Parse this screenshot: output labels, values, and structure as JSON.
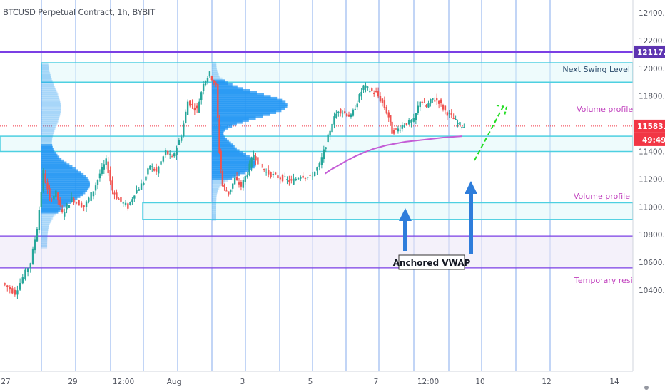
{
  "header": {
    "title": "BTCUSD Perpetual Contract, 1h, BYBIT"
  },
  "colors": {
    "up": "#26a69a",
    "down": "#ef5350",
    "grid_line": "#5b8fe6",
    "level_line": "#7b3fe4",
    "zone_line": "#4dd0e1",
    "vwap": "#c45dd6",
    "profile_bar": "#2196f3",
    "arrow": "#2e7ddb",
    "projection": "#22dd22",
    "label_magenta": "#c03fbd",
    "price_tag": "#f23645",
    "swing_tag": "#5e35b1"
  },
  "price_axis": {
    "ticks": [
      "12400.0",
      "12200.0",
      "12000.0",
      "11800.0",
      "11600.0",
      "11400.0",
      "11200.0",
      "11000.0",
      "10800.0",
      "10600.0",
      "10400.0"
    ],
    "last_price": "11583.0",
    "countdown": "49:49",
    "swing_level": "12117.5"
  },
  "time_axis": {
    "ticks": [
      "27",
      "29",
      "12:00",
      "Aug",
      "3",
      "5",
      "7",
      "12:00",
      "10",
      "12",
      "14"
    ]
  },
  "annotations": {
    "next_swing": "Next Swing Level",
    "vol_profile_1": "Volume profile le",
    "vol_profile_2": "Volume profile",
    "temp_resist": "Temporary resista",
    "anchored_vwap": "Anchored VWAP"
  },
  "chart_data": {
    "type": "candlestick",
    "title": "BTCUSD Perpetual Contract, 1h, BYBIT",
    "ylim": [
      10360,
      12560
    ],
    "horizontal_levels": [
      {
        "name": "Next Swing Level",
        "price": 12117.5
      },
      {
        "name": "Volume profile le",
        "price_range": [
          11900,
          12040
        ]
      },
      {
        "name": "Volume profile",
        "price_range": [
          11400,
          11510
        ]
      },
      {
        "name": "Temporary resista",
        "price_range": [
          10910,
          11030
        ]
      },
      {
        "price_range": [
          10560,
          10790
        ]
      }
    ],
    "anchored_vwap": [
      [
        0.512,
        11240
      ],
      [
        0.52,
        11265
      ],
      [
        0.53,
        11290
      ],
      [
        0.545,
        11330
      ],
      [
        0.56,
        11365
      ],
      [
        0.575,
        11395
      ],
      [
        0.59,
        11420
      ],
      [
        0.61,
        11445
      ],
      [
        0.64,
        11470
      ],
      [
        0.67,
        11485
      ],
      [
        0.7,
        11500
      ],
      [
        0.73,
        11510
      ]
    ],
    "ohlc_path": [
      [
        0.0,
        10450
      ],
      [
        0.02,
        10380
      ],
      [
        0.045,
        10600
      ],
      [
        0.055,
        10850
      ],
      [
        0.065,
        11250
      ],
      [
        0.075,
        11050
      ],
      [
        0.085,
        11100
      ],
      [
        0.095,
        10950
      ],
      [
        0.11,
        11060
      ],
      [
        0.13,
        11000
      ],
      [
        0.145,
        11120
      ],
      [
        0.155,
        11240
      ],
      [
        0.165,
        11330
      ],
      [
        0.175,
        11120
      ],
      [
        0.185,
        11050
      ],
      [
        0.2,
        11000
      ],
      [
        0.21,
        11100
      ],
      [
        0.225,
        11180
      ],
      [
        0.235,
        11300
      ],
      [
        0.245,
        11250
      ],
      [
        0.26,
        11400
      ],
      [
        0.27,
        11350
      ],
      [
        0.285,
        11520
      ],
      [
        0.295,
        11760
      ],
      [
        0.31,
        11700
      ],
      [
        0.32,
        11900
      ],
      [
        0.33,
        11960
      ],
      [
        0.34,
        11870
      ],
      [
        0.345,
        11400
      ],
      [
        0.35,
        11150
      ],
      [
        0.36,
        11100
      ],
      [
        0.37,
        11200
      ],
      [
        0.38,
        11150
      ],
      [
        0.39,
        11250
      ],
      [
        0.4,
        11380
      ],
      [
        0.41,
        11300
      ],
      [
        0.42,
        11250
      ],
      [
        0.435,
        11220
      ],
      [
        0.45,
        11200
      ],
      [
        0.46,
        11180
      ],
      [
        0.475,
        11230
      ],
      [
        0.49,
        11210
      ],
      [
        0.505,
        11300
      ],
      [
        0.515,
        11450
      ],
      [
        0.525,
        11610
      ],
      [
        0.535,
        11700
      ],
      [
        0.545,
        11680
      ],
      [
        0.555,
        11650
      ],
      [
        0.565,
        11760
      ],
      [
        0.575,
        11870
      ],
      [
        0.585,
        11840
      ],
      [
        0.595,
        11820
      ],
      [
        0.605,
        11750
      ],
      [
        0.615,
        11650
      ],
      [
        0.62,
        11540
      ],
      [
        0.63,
        11560
      ],
      [
        0.64,
        11600
      ],
      [
        0.655,
        11620
      ],
      [
        0.665,
        11770
      ],
      [
        0.675,
        11720
      ],
      [
        0.685,
        11780
      ],
      [
        0.695,
        11760
      ],
      [
        0.705,
        11690
      ],
      [
        0.715,
        11650
      ],
      [
        0.725,
        11600
      ],
      [
        0.735,
        11583
      ]
    ],
    "volume_profile_left": true,
    "volume_profile_mid": true
  }
}
